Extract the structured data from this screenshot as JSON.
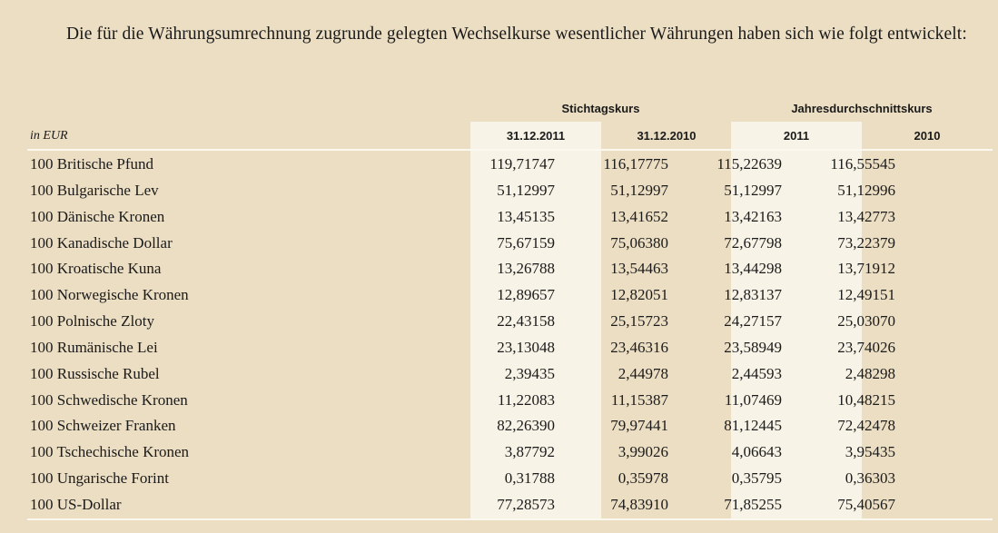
{
  "intro": "Die für die Währungsumrechnung zugrunde gelegten Wechselkurse wesentlicher Währungen haben sich wie folgt entwickelt:",
  "table": {
    "unit_label": "in EUR",
    "groups": [
      "Stichtagskurs",
      "Jahresdurchschnittskurs"
    ],
    "columns": [
      "31.12.2011",
      "31.12.2010",
      "2011",
      "2010"
    ],
    "rows": [
      {
        "label": "100 Britische Pfund",
        "values": [
          "119,71747",
          "116,17775",
          "115,22639",
          "116,55545"
        ]
      },
      {
        "label": "100 Bulgarische Lev",
        "values": [
          "51,12997",
          "51,12997",
          "51,12997",
          "51,12996"
        ]
      },
      {
        "label": "100 Dänische Kronen",
        "values": [
          "13,45135",
          "13,41652",
          "13,42163",
          "13,42773"
        ]
      },
      {
        "label": "100 Kanadische Dollar",
        "values": [
          "75,67159",
          "75,06380",
          "72,67798",
          "73,22379"
        ]
      },
      {
        "label": "100 Kroatische Kuna",
        "values": [
          "13,26788",
          "13,54463",
          "13,44298",
          "13,71912"
        ]
      },
      {
        "label": "100 Norwegische Kronen",
        "values": [
          "12,89657",
          "12,82051",
          "12,83137",
          "12,49151"
        ]
      },
      {
        "label": "100 Polnische Zloty",
        "values": [
          "22,43158",
          "25,15723",
          "24,27157",
          "25,03070"
        ]
      },
      {
        "label": "100 Rumänische Lei",
        "values": [
          "23,13048",
          "23,46316",
          "23,58949",
          "23,74026"
        ]
      },
      {
        "label": "100 Russische Rubel",
        "values": [
          "2,39435",
          "2,44978",
          "2,44593",
          "2,48298"
        ]
      },
      {
        "label": "100 Schwedische Kronen",
        "values": [
          "11,22083",
          "11,15387",
          "11,07469",
          "10,48215"
        ]
      },
      {
        "label": "100 Schweizer Franken",
        "values": [
          "82,26390",
          "79,97441",
          "81,12445",
          "72,42478"
        ]
      },
      {
        "label": "100 Tschechische Kronen",
        "values": [
          "3,87792",
          "3,99026",
          "4,06643",
          "3,95435"
        ]
      },
      {
        "label": "100 Ungarische Forint",
        "values": [
          "0,31788",
          "0,35978",
          "0,35795",
          "0,36303"
        ]
      },
      {
        "label": "100 US-Dollar",
        "values": [
          "77,28573",
          "74,83910",
          "71,85255",
          "75,40567"
        ]
      }
    ]
  }
}
